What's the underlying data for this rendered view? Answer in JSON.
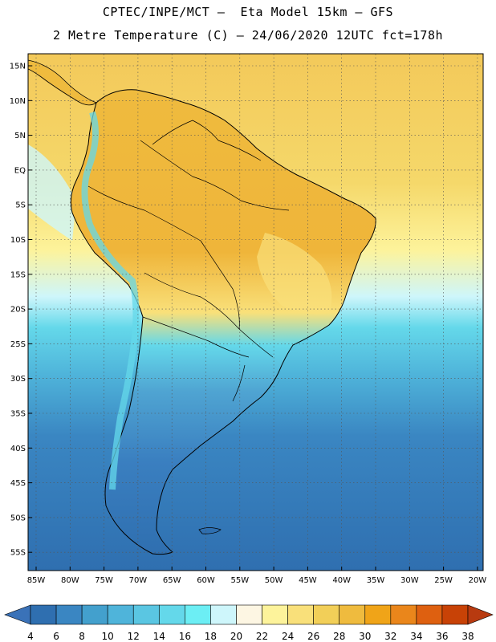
{
  "header": {
    "title_line1": "CPTEC/INPE/MCT –  Eta Model 15km – GFS",
    "title_line2": "2 Metre Temperature (C) – 24/06/2020 12UTC fct=178h"
  },
  "map": {
    "lat_ticks": [
      "15N",
      "10N",
      "5N",
      "EQ",
      "5S",
      "10S",
      "15S",
      "20S",
      "25S",
      "30S",
      "35S",
      "40S",
      "45S",
      "50S",
      "55S"
    ],
    "lon_ticks": [
      "85W",
      "80W",
      "75W",
      "70W",
      "65W",
      "60W",
      "55W",
      "50W",
      "45W",
      "40W",
      "35W",
      "30W",
      "25W",
      "20W"
    ],
    "grid": true
  },
  "colorbar": {
    "levels": [
      "4",
      "6",
      "8",
      "10",
      "12",
      "14",
      "16",
      "18",
      "20",
      "22",
      "24",
      "26",
      "28",
      "30",
      "32",
      "34",
      "36",
      "38"
    ],
    "colors": [
      "#2f6fb0",
      "#3a86c2",
      "#43a0cd",
      "#4fb4da",
      "#5ac6e2",
      "#64d8ea",
      "#6ceef4",
      "#cef6fb",
      "#fdf6e3",
      "#fdf39b",
      "#f9e07a",
      "#f2cf58",
      "#efbb3e",
      "#f0a418",
      "#ea861b",
      "#de6010",
      "#c84206"
    ],
    "low_color": "#3a72b8",
    "high_color": "#b83a10"
  }
}
